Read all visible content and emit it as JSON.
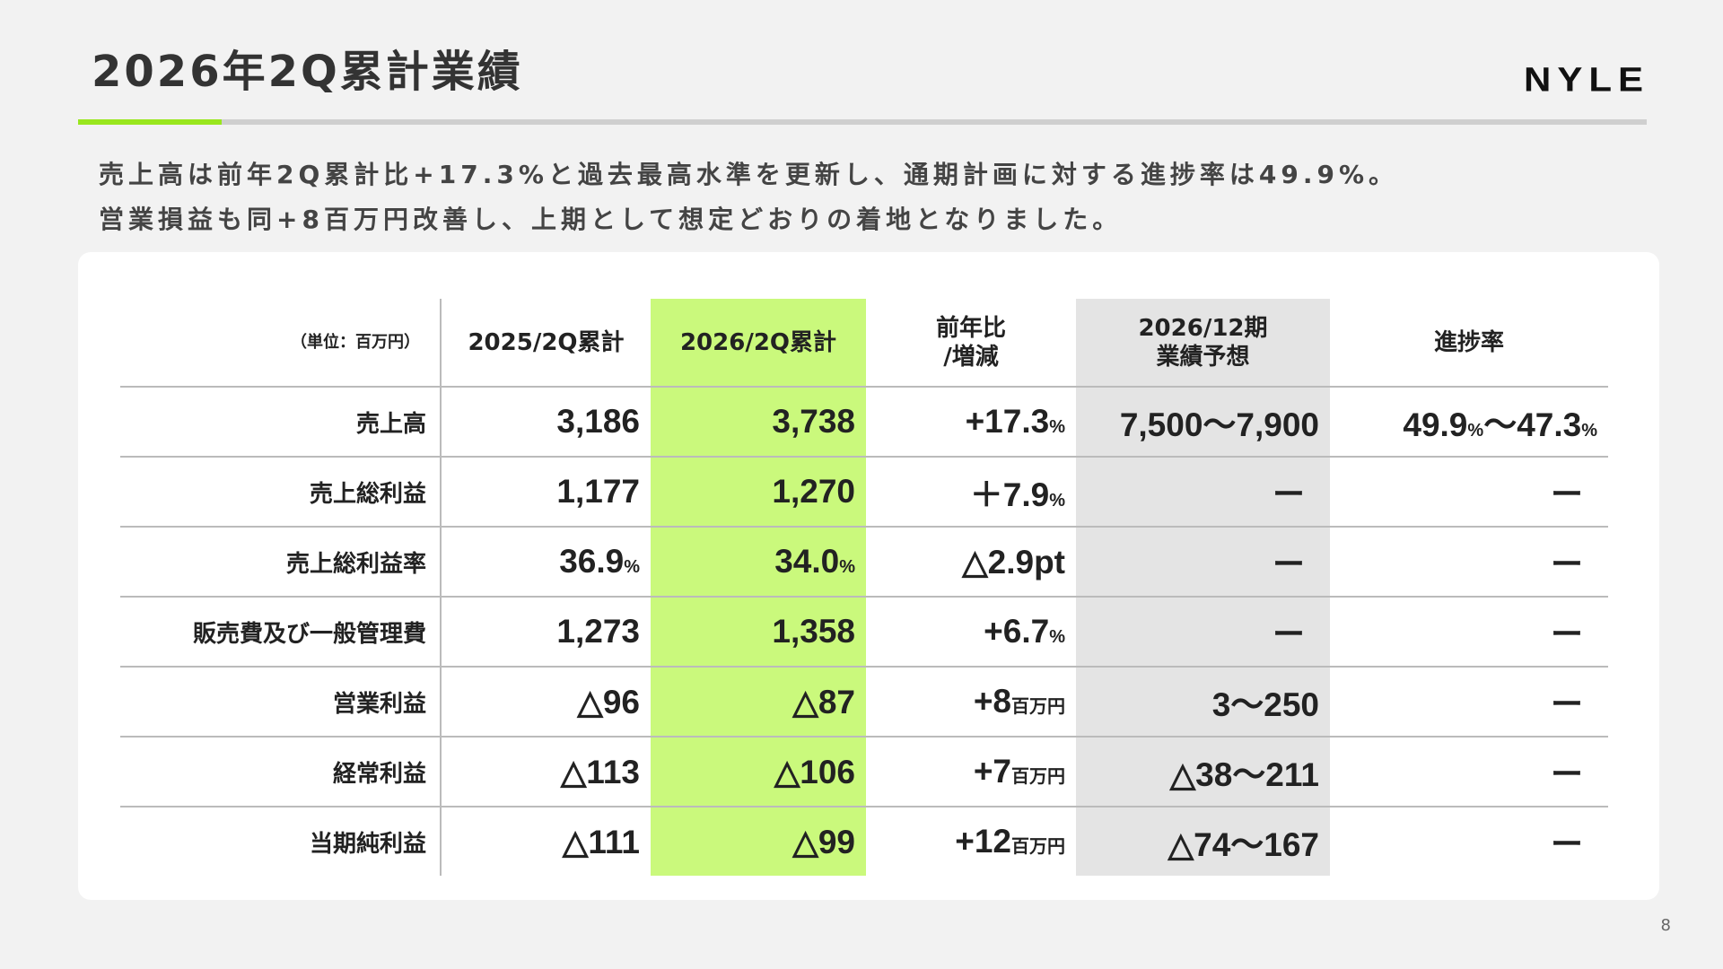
{
  "page": {
    "title": "2026年2Q累計業績",
    "logo": "NYLE",
    "page_number": "8",
    "lead_lines": [
      "売上高は前年2Q累計比+17.3%と過去最高水準を更新し、通期計画に対する進捗率は49.9%。",
      "営業損益も同+8百万円改善し、上期として想定どおりの着地となりました。"
    ]
  },
  "colors": {
    "accent_green": "#99e61e",
    "highlight_green": "#caf97c",
    "forecast_gray": "#e4e4e4"
  },
  "table": {
    "headers": {
      "unit": "（単位：百万円）",
      "prev": "2025/2Q累計",
      "curr": "2026/2Q累計",
      "yoy_line1": "前年比",
      "yoy_line2": "/増減",
      "forecast_line1": "2026/12期",
      "forecast_line2": "業績予想",
      "progress": "進捗率"
    },
    "rows": [
      {
        "label": "売上高",
        "prev": "3,186",
        "curr": "3,738",
        "yoy": "+17.3",
        "yoy_unit": "%",
        "forecast": "7,500～7,900",
        "progress_a": "49.9",
        "progress_a_unit": "%",
        "progress_sep": "～",
        "progress_b": "47.3",
        "progress_b_unit": "%"
      },
      {
        "label": "売上総利益",
        "prev": "1,177",
        "curr": "1,270",
        "yoy": "＋7.9",
        "yoy_unit": "%",
        "forecast": "ー",
        "progress": "ー"
      },
      {
        "label": "売上総利益率",
        "prev": "36.9",
        "prev_unit": "%",
        "curr": "34.0",
        "curr_unit": "%",
        "yoy": "△2.9pt",
        "yoy_unit": "",
        "forecast": "ー",
        "progress": "ー"
      },
      {
        "label": "販売費及び一般管理費",
        "prev": "1,273",
        "curr": "1,358",
        "yoy": "+6.7",
        "yoy_unit": "%",
        "forecast": "ー",
        "progress": "ー"
      },
      {
        "label": "営業利益",
        "prev": "△96",
        "curr": "△87",
        "yoy": "+8",
        "yoy_unit": "百万円",
        "forecast": "3～250",
        "progress": "ー"
      },
      {
        "label": "経常利益",
        "prev": "△113",
        "curr": "△106",
        "yoy": "+7",
        "yoy_unit": "百万円",
        "forecast": "△38～211",
        "progress": "ー"
      },
      {
        "label": "当期純利益",
        "prev": "△111",
        "curr": "△99",
        "yoy": "+12",
        "yoy_unit": "百万円",
        "forecast": "△74～167",
        "progress": "ー"
      }
    ]
  }
}
